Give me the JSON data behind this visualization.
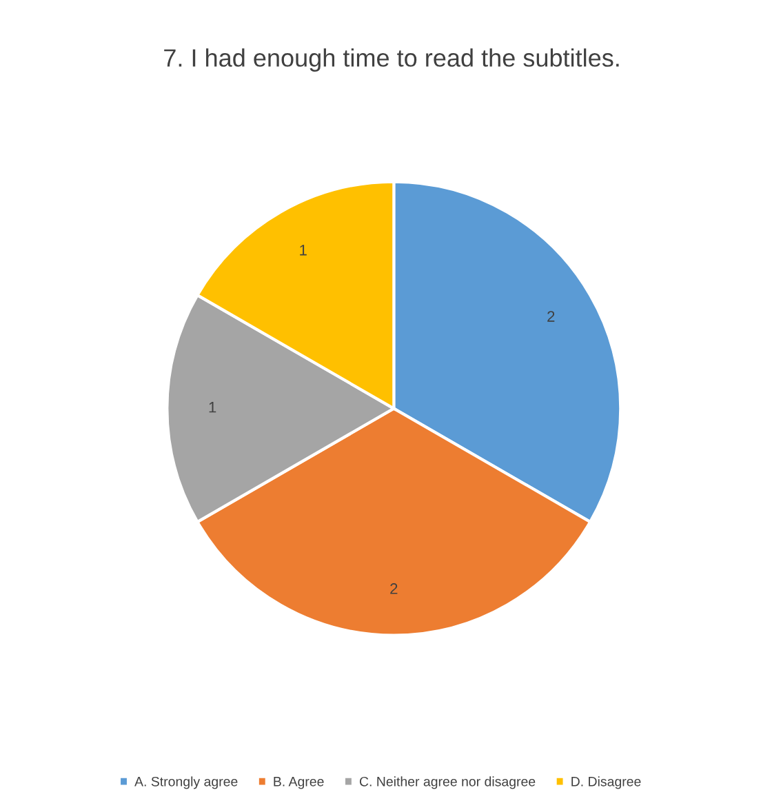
{
  "chart_data": {
    "type": "pie",
    "title": "7. I had enough time to read the subtitles.",
    "categories": [
      "A. Strongly agree",
      "B. Agree",
      "C. Neither agree nor disagree",
      "D. Disagree"
    ],
    "values": [
      2,
      2,
      1,
      1
    ],
    "colors": [
      "#5b9bd5",
      "#ed7d31",
      "#a5a5a5",
      "#ffc000"
    ],
    "data_labels": true,
    "legend": "bottom"
  }
}
